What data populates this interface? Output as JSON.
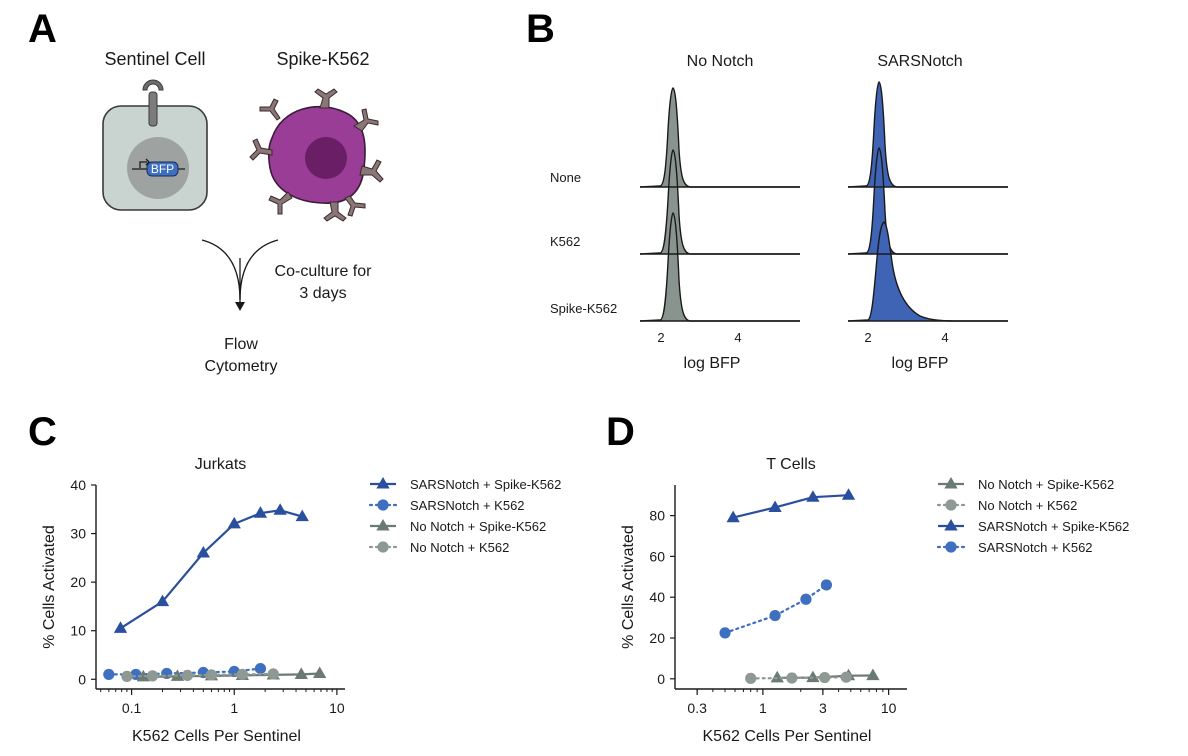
{
  "panels": {
    "A": {
      "letter": "A",
      "sentinel_label": "Sentinel Cell",
      "target_label": "Spike-K562",
      "reporter_label": "BFP",
      "coculture_line1": "Co-culture for",
      "coculture_line2": "3 days",
      "flow_line1": "Flow",
      "flow_line2": "Cytometry"
    },
    "B": {
      "letter": "B",
      "col_titles": [
        "No Notch",
        "SARSNotch"
      ],
      "row_labels": [
        "None",
        "K562",
        "Spike-K562"
      ],
      "tick_labels": [
        "2",
        "4"
      ],
      "xlabel": "log BFP"
    },
    "C": {
      "letter": "C"
    },
    "D": {
      "letter": "D"
    }
  },
  "colors": {
    "sarsnotch_blue": "#2a4f9f",
    "sarsnotch_dot_blue": "#3f6fc0",
    "nonotch_gray": "#6b7a72",
    "nonotch_dot_gray": "#8e9993",
    "histogram_gray": "#8a948f",
    "histogram_blue": "#3f63b5",
    "sentinel_fill": "#c9d3d0",
    "nucleus": "#9ea3a2",
    "spike_cell": "#993d96",
    "spike_nucleus": "#6a1e66",
    "spike_protein": "#8a7577"
  },
  "chart_data": [
    {
      "type": "histogram-ridge",
      "panel": "B",
      "columns": [
        "No Notch",
        "SARSNotch"
      ],
      "rows": [
        "None",
        "K562",
        "Spike-K562"
      ],
      "xlabel": "log BFP",
      "xticks": [
        2,
        4
      ],
      "peaks_logBFP": {
        "No Notch": [
          2.3,
          2.3,
          2.3
        ],
        "SARSNotch": [
          2.3,
          2.3,
          2.6
        ]
      }
    },
    {
      "type": "line",
      "panel": "C",
      "title": "Jurkats",
      "xlabel": "K562 Cells Per Sentinel",
      "ylabel": "% Cells Activated",
      "xscale": "log",
      "xlim": [
        0.045,
        12
      ],
      "ylim": [
        -2,
        40
      ],
      "xticks": [
        0.1,
        1,
        10
      ],
      "xtick_labels": [
        "0.1",
        "1",
        "10"
      ],
      "yticks": [
        0,
        10,
        20,
        30,
        40
      ],
      "legend": [
        "SARSNotch + Spike-K562",
        "SARSNotch + K562",
        "No Notch + Spike-K562",
        "No Notch + K562"
      ],
      "series": [
        {
          "name": "SARSNotch + Spike-K562",
          "marker": "triangle",
          "dash": "solid",
          "color": "#2a4f9f",
          "x": [
            0.078,
            0.2,
            0.5,
            1.0,
            1.8,
            2.8,
            4.6
          ],
          "y": [
            10.5,
            16,
            26,
            32,
            34.2,
            34.8,
            33.5
          ]
        },
        {
          "name": "SARSNotch + K562",
          "marker": "circle",
          "dash": "dotted",
          "color": "#3f6fc0",
          "x": [
            0.06,
            0.11,
            0.22,
            0.5,
            1.0,
            1.8
          ],
          "y": [
            1.0,
            1.0,
            1.2,
            1.4,
            1.6,
            2.2
          ]
        },
        {
          "name": "No Notch + Spike-K562",
          "marker": "triangle",
          "dash": "solid",
          "color": "#6b7a72",
          "x": [
            0.13,
            0.28,
            0.6,
            1.2,
            2.4,
            4.5,
            6.8
          ],
          "y": [
            0.5,
            0.6,
            0.7,
            0.8,
            0.9,
            1.0,
            1.2
          ]
        },
        {
          "name": "No Notch + K562",
          "marker": "circle",
          "dash": "dotted",
          "color": "#8e9993",
          "x": [
            0.09,
            0.16,
            0.35,
            0.6,
            1.2,
            2.4
          ],
          "y": [
            0.6,
            0.7,
            0.8,
            0.9,
            1.0,
            1.1
          ]
        }
      ]
    },
    {
      "type": "line",
      "panel": "D",
      "title": "T Cells",
      "xlabel": "K562 Cells Per Sentinel",
      "ylabel": "% Cells Activated",
      "xscale": "log",
      "xlim": [
        0.2,
        14
      ],
      "ylim": [
        -5,
        95
      ],
      "xticks": [
        0.3,
        1,
        3,
        10
      ],
      "xtick_labels": [
        "0.3",
        "1",
        "3",
        "10"
      ],
      "yticks": [
        0,
        20,
        40,
        60,
        80
      ],
      "legend": [
        "No Notch + Spike-K562",
        "No Notch + K562",
        "SARSNotch + Spike-K562",
        "SARSNotch + K562"
      ],
      "series": [
        {
          "name": "No Notch + Spike-K562",
          "marker": "triangle",
          "dash": "solid",
          "color": "#6b7a72",
          "x": [
            1.3,
            2.5,
            4.8,
            7.5
          ],
          "y": [
            0.5,
            0.6,
            1.5,
            1.6
          ]
        },
        {
          "name": "No Notch + K562",
          "marker": "circle",
          "dash": "dotted",
          "color": "#8e9993",
          "x": [
            0.8,
            1.7,
            3.1,
            4.6
          ],
          "y": [
            0.2,
            0.4,
            0.6,
            0.8
          ]
        },
        {
          "name": "SARSNotch + Spike-K562",
          "marker": "triangle",
          "dash": "solid",
          "color": "#2a4f9f",
          "x": [
            0.58,
            1.25,
            2.5,
            4.8
          ],
          "y": [
            79,
            84,
            89,
            90
          ]
        },
        {
          "name": "SARSNotch + K562",
          "marker": "circle",
          "dash": "dotted",
          "color": "#3f6fc0",
          "x": [
            0.5,
            1.25,
            2.2,
            3.2
          ],
          "y": [
            22.5,
            31,
            39,
            46
          ]
        }
      ]
    }
  ]
}
